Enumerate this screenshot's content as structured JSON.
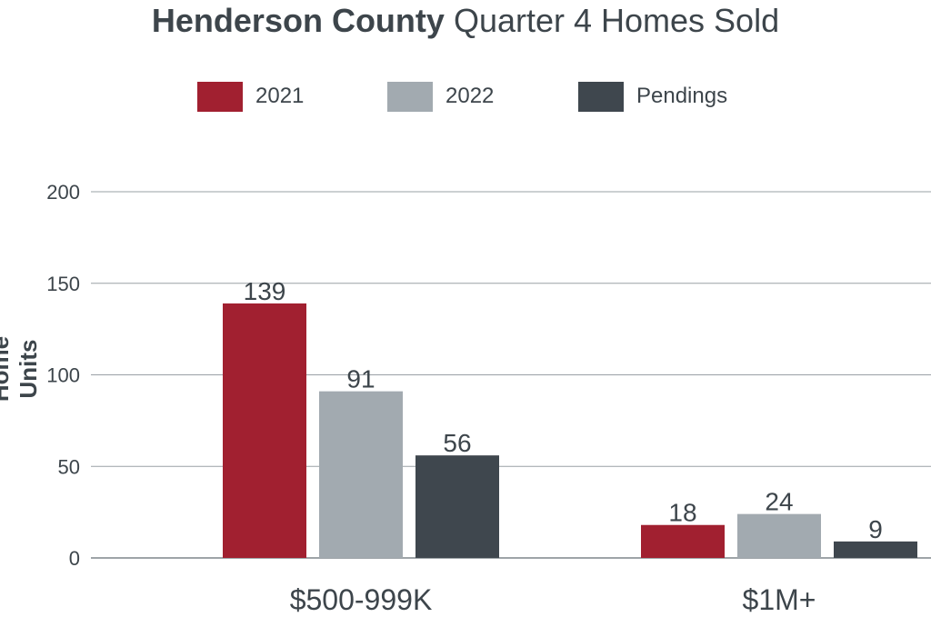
{
  "title": {
    "bold": "Henderson County",
    "rest": "Quarter 4 Homes Sold"
  },
  "chart_data": {
    "type": "bar",
    "title": "Henderson County Quarter 4 Homes Sold",
    "xlabel": "",
    "ylabel": "Home Units",
    "categories": [
      "$500-999K",
      "$1M+"
    ],
    "series": [
      {
        "name": "2021",
        "values": [
          139,
          18
        ],
        "color": "#a12030"
      },
      {
        "name": "2022",
        "values": [
          91,
          24
        ],
        "color": "#a2aab0"
      },
      {
        "name": "Pendings",
        "values": [
          56,
          9
        ],
        "color": "#3f474e"
      }
    ],
    "ylim": [
      0,
      200
    ],
    "yticks": [
      0,
      50,
      100,
      150,
      200
    ],
    "grid": true,
    "legend": "top"
  }
}
